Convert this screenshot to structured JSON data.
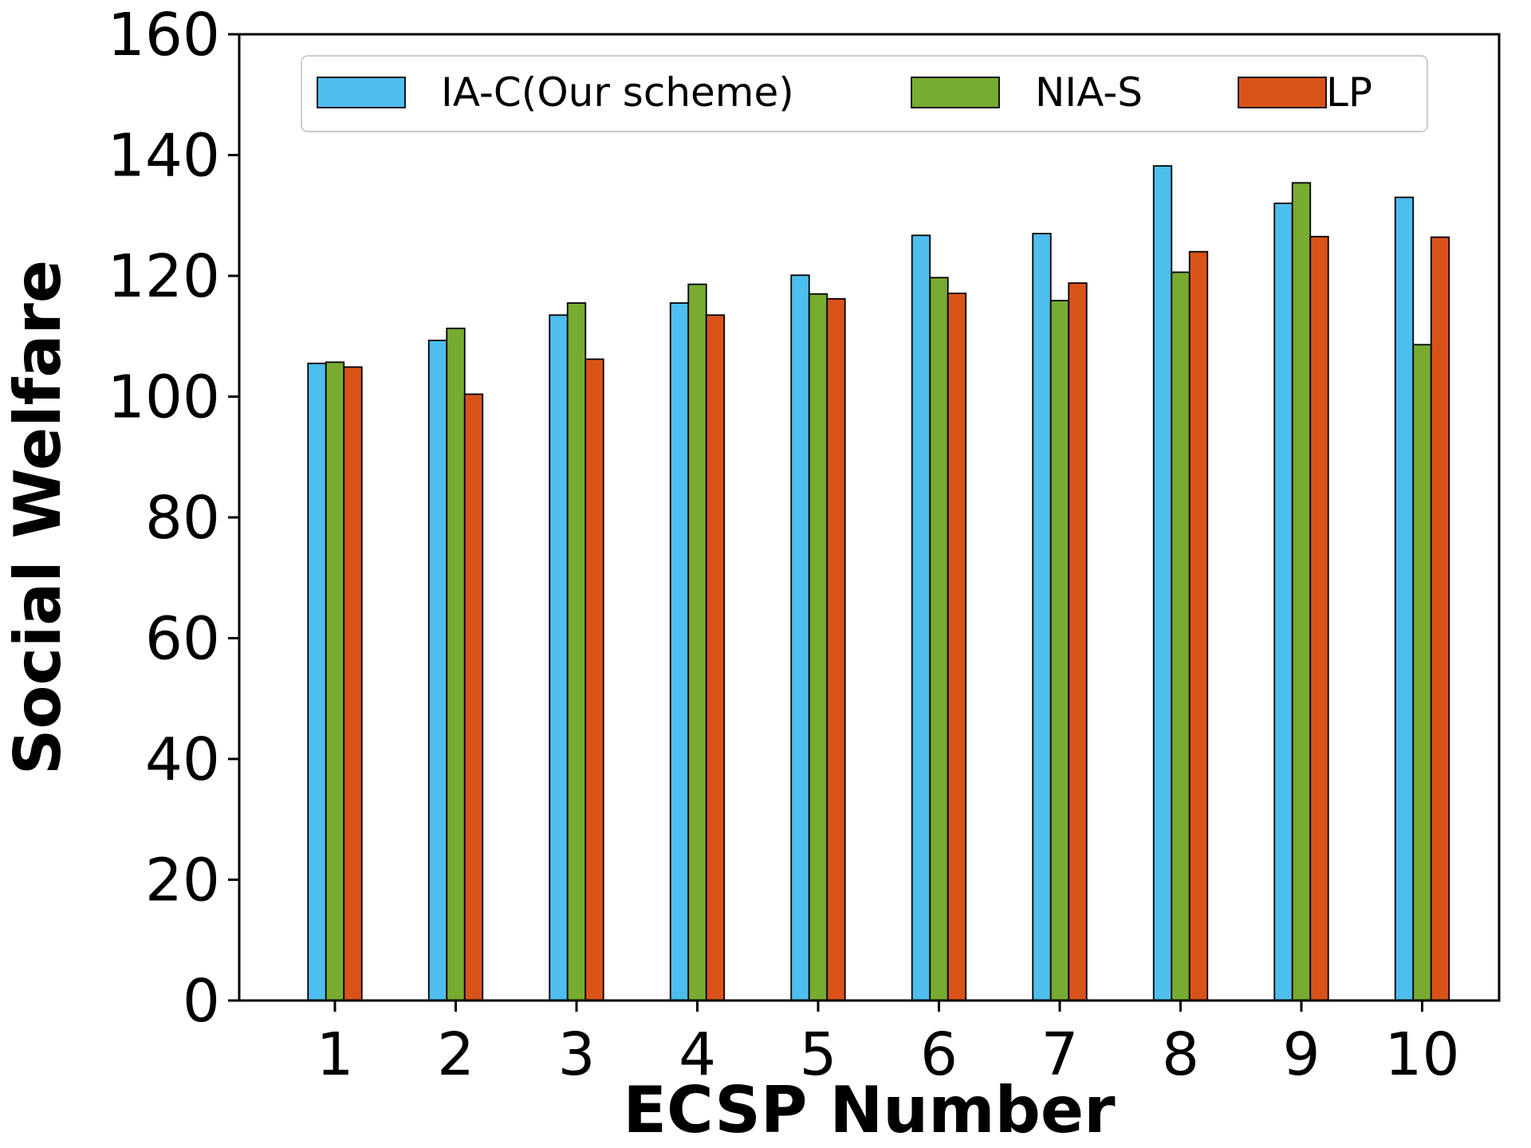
{
  "chart_data": {
    "type": "bar",
    "xlabel": "ECSP Number",
    "ylabel": "Social Welfare",
    "categories": [
      "1",
      "2",
      "3",
      "4",
      "5",
      "6",
      "7",
      "8",
      "9",
      "10"
    ],
    "ylim": [
      0,
      160
    ],
    "yticks": [
      0,
      20,
      40,
      60,
      80,
      100,
      120,
      140,
      160
    ],
    "grid": false,
    "legend_position": "top",
    "series": [
      {
        "name": "IA-C(Our scheme)",
        "color": "#4dbeee",
        "values": [
          105.5,
          109.3,
          113.5,
          115.5,
          120.1,
          126.7,
          127.0,
          138.2,
          132.0,
          133.0
        ]
      },
      {
        "name": "NIA-S",
        "color": "#77ac30",
        "values": [
          105.7,
          111.3,
          115.5,
          118.6,
          117.0,
          119.7,
          115.9,
          120.6,
          135.4,
          108.6
        ]
      },
      {
        "name": "LP",
        "color": "#d95319",
        "values": [
          104.9,
          100.4,
          106.2,
          113.5,
          116.2,
          117.1,
          118.8,
          124.0,
          126.5,
          126.4
        ]
      }
    ]
  }
}
